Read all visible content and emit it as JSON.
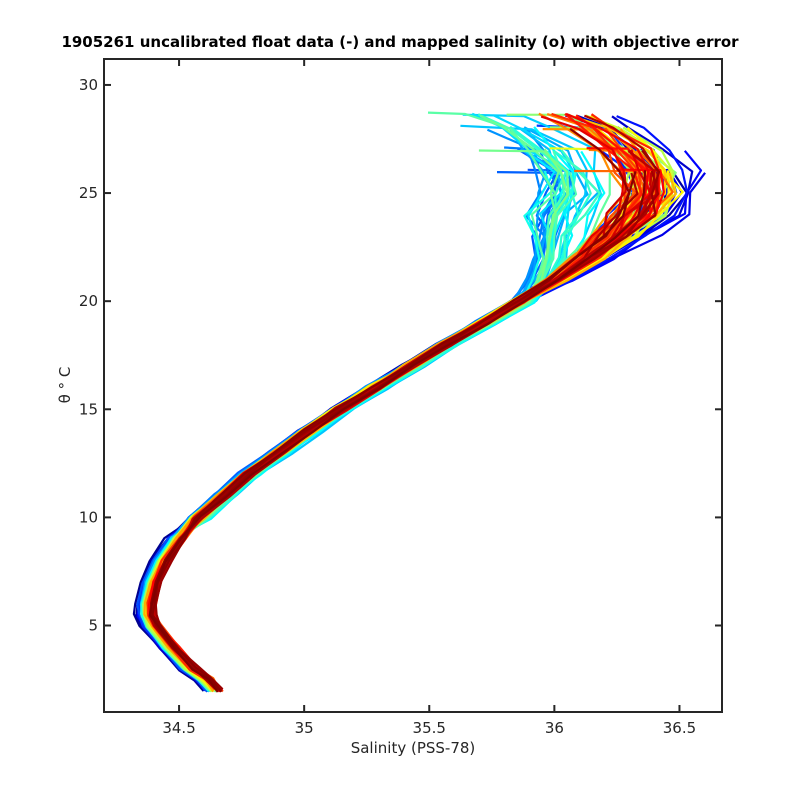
{
  "chart_data": {
    "type": "line",
    "title": "1905261 uncalibrated float data (-) and mapped salinity (o) with objective error",
    "xlabel": "Salinity (PSS-78)",
    "ylabel": "θ ° C",
    "xlim": [
      34.2,
      36.67
    ],
    "ylim": [
      1.0,
      31.2
    ],
    "xticks": [
      34.5,
      35,
      35.5,
      36,
      36.5
    ],
    "xtick_labels": [
      "34.5",
      "35",
      "35.5",
      "36",
      "36.5"
    ],
    "yticks": [
      5,
      10,
      15,
      20,
      25,
      30
    ],
    "ytick_labels": [
      "5",
      "10",
      "15",
      "20",
      "25",
      "30"
    ],
    "grid": false,
    "legend": "none",
    "colormap": "jet",
    "colormap_stops": [
      "#00008f",
      "#0000ff",
      "#0080ff",
      "#00ffff",
      "#80ff80",
      "#ffff00",
      "#ff8000",
      "#ff0000",
      "#800000"
    ],
    "profile_count": 120,
    "representative_profile": {
      "temperature": [
        2.0,
        2.5,
        3.0,
        4.0,
        5.0,
        5.5,
        6.0,
        7.0,
        8.0,
        9.0,
        10.0,
        11.0,
        12.0,
        13.0,
        14.0,
        15.0,
        16.0,
        17.0,
        18.0,
        19.0,
        20.0,
        21.0,
        22.0,
        23.0,
        24.0,
        25.0,
        26.0,
        27.0,
        28.0,
        28.6
      ],
      "salinity": [
        34.64,
        34.6,
        34.54,
        34.46,
        34.39,
        34.37,
        34.37,
        34.39,
        34.43,
        34.49,
        34.57,
        34.67,
        34.77,
        34.89,
        35.01,
        35.14,
        35.28,
        35.42,
        35.56,
        35.71,
        35.86,
        36.0,
        36.12,
        36.22,
        36.3,
        36.35,
        36.34,
        36.27,
        36.15,
        36.03
      ]
    }
  }
}
